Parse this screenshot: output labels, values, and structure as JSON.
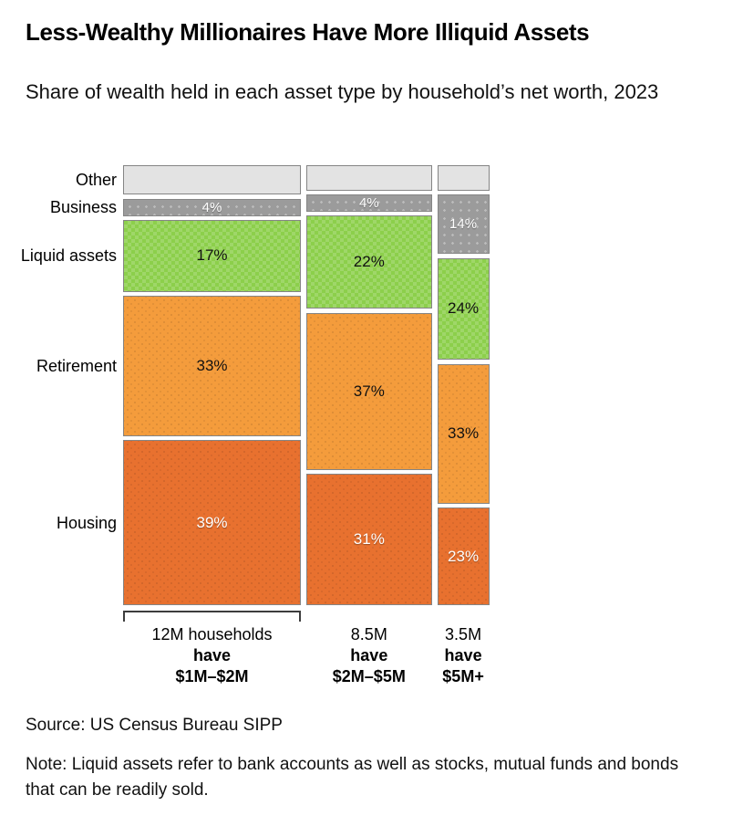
{
  "header": {
    "title": "Less-Wealthy Millionaires Have More Illiquid Assets",
    "subtitle": "Share of wealth held in each asset type by household’s net worth, 2023"
  },
  "chart_data": {
    "type": "mosaic",
    "title": "Less-Wealthy Millionaires Have More Illiquid Assets",
    "subtitle": "Share of wealth held in each asset type by household’s net worth, 2023",
    "unit": "percent of wealth held in each asset type",
    "year": "2023",
    "categories": [
      {
        "id": "other",
        "label": "Other",
        "color": "#e3e3e3",
        "pattern": "plain",
        "label_color": "dark"
      },
      {
        "id": "business",
        "label": "Business",
        "color": "#9b9b9b",
        "pattern": "dots-light",
        "label_color": "light"
      },
      {
        "id": "liquid",
        "label": "Liquid assets",
        "color": "#8ccf4b",
        "pattern": "check",
        "label_color": "dark"
      },
      {
        "id": "retirement",
        "label": "Retirement",
        "color": "#f49c3c",
        "pattern": "dots-dark",
        "label_color": "dark"
      },
      {
        "id": "housing",
        "label": "Housing",
        "color": "#e8712f",
        "pattern": "dots-dark",
        "label_color": "light"
      }
    ],
    "columns": [
      {
        "households_millions": 12,
        "footer_lines": [
          "12M households",
          "have",
          "$1M–$2M"
        ],
        "bracket": true,
        "values": {
          "other": 7,
          "business": 4,
          "liquid": 17,
          "retirement": 33,
          "housing": 39
        },
        "value_labels": {
          "other": null,
          "business": "4%",
          "liquid": "17%",
          "retirement": "33%",
          "housing": "39%"
        }
      },
      {
        "households_millions": 8.5,
        "footer_lines": [
          "8.5M",
          "have",
          "$2M–$5M"
        ],
        "bracket": false,
        "values": {
          "other": 6,
          "business": 4,
          "liquid": 22,
          "retirement": 37,
          "housing": 31
        },
        "value_labels": {
          "other": null,
          "business": "4%",
          "liquid": "22%",
          "retirement": "37%",
          "housing": "31%"
        }
      },
      {
        "households_millions": 3.5,
        "footer_lines": [
          "3.5M",
          "have",
          "$5M+"
        ],
        "bracket": false,
        "values": {
          "other": 6,
          "business": 14,
          "liquid": 24,
          "retirement": 33,
          "housing": 23
        },
        "value_labels": {
          "other": null,
          "business": "14%",
          "liquid": "24%",
          "retirement": "33%",
          "housing": "23%"
        }
      }
    ],
    "legend_position": "left-row-labels",
    "grid": false
  },
  "footer": {
    "source": "Source: US Census Bureau SIPP",
    "note": "Note: Liquid assets refer to bank accounts as well as stocks, mutual funds and bonds that can be readily sold."
  }
}
